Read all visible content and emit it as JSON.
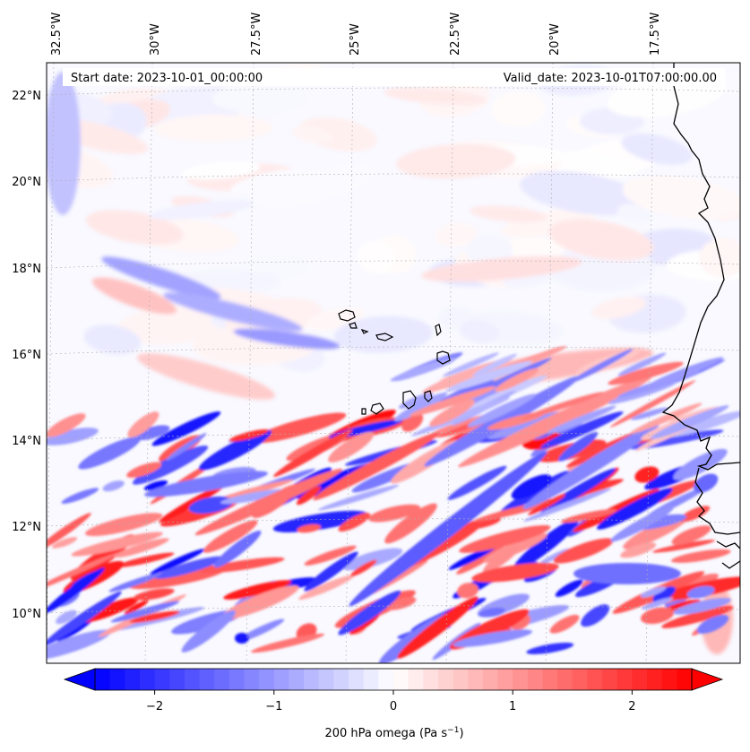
{
  "map": {
    "header": {
      "start_date": "Start date: 2023-10-01_00:00:00",
      "valid_date": "Valid_date: 2023-10-01T07:00:00.00"
    },
    "lon_labels": [
      "32.5°W",
      "30°W",
      "27.5°W",
      "25°W",
      "22.5°W",
      "20°W",
      "17.5°W"
    ],
    "lat_labels": [
      "22°N",
      "20°N",
      "18°N",
      "16°N",
      "14°N",
      "12°N",
      "10°N"
    ],
    "colorbar": {
      "label": "200 hPa omega (Pa s",
      "label_exp": "−1",
      "label_close": ")",
      "ticks": [
        "−2",
        "−1",
        "0",
        "1",
        "2"
      ],
      "tick_values": [
        -2,
        -1,
        0,
        1,
        2
      ],
      "range": [
        -2.5,
        2.5
      ],
      "levels": 40,
      "colormap": "bwr",
      "extend": "both"
    },
    "colors": {
      "negative": "#0000ff",
      "zero": "#ffffff",
      "positive": "#ff0000",
      "coastline": "#000000",
      "gridline": "#b0b0b0"
    },
    "field": "200 hPa vertical velocity (omega)"
  }
}
